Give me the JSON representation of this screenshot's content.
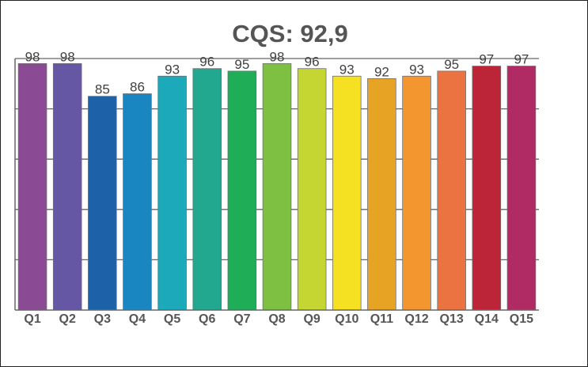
{
  "chart_data": {
    "type": "bar",
    "title": "CQS: 92,9",
    "xlabel": "",
    "ylabel": "",
    "categories": [
      "Q1",
      "Q2",
      "Q3",
      "Q4",
      "Q5",
      "Q6",
      "Q7",
      "Q8",
      "Q9",
      "Q10",
      "Q11",
      "Q12",
      "Q13",
      "Q14",
      "Q15"
    ],
    "values": [
      98,
      98,
      85,
      86,
      93,
      96,
      95,
      98,
      96,
      93,
      92,
      93,
      95,
      97,
      97
    ],
    "ylim": [
      0,
      100
    ],
    "grid": true,
    "legend": "none",
    "data_labels": true,
    "colors": [
      "#8a4a94",
      "#6657a5",
      "#1d62a9",
      "#1a86c1",
      "#1ca9b9",
      "#21a88f",
      "#20ad58",
      "#7ec142",
      "#c5d532",
      "#f5e021",
      "#e7a424",
      "#f3962f",
      "#ea7341",
      "#bc2537",
      "#b02a63"
    ]
  }
}
